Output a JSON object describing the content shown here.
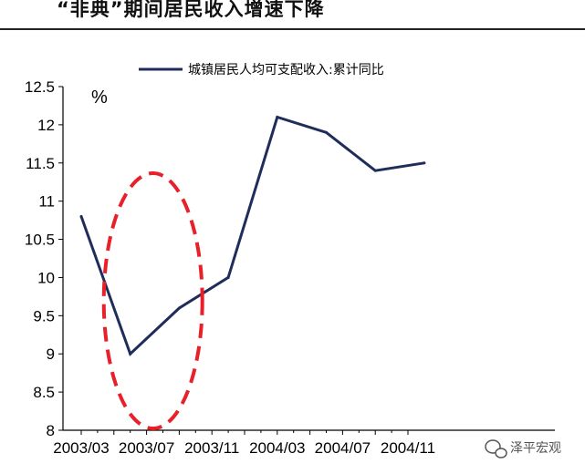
{
  "header": {
    "title": "“非典”期间居民收入增速下降"
  },
  "watermark": {
    "text": "泽平宏观",
    "icon": "wechat-icon",
    "color": "#555555"
  },
  "colors": {
    "series": "#1f2d5a",
    "highlight": "#e8202a",
    "axis": "#000000"
  },
  "chart_data": {
    "type": "line",
    "unit_label": "%",
    "xlabel": "",
    "ylabel": "",
    "x_ticks": [
      "2003/03",
      "2003/07",
      "2003/11",
      "2004/03",
      "2004/07",
      "2004/11"
    ],
    "ylim": [
      8,
      12.5
    ],
    "y_ticks": [
      "8",
      "8.5",
      "9",
      "9.5",
      "10",
      "10.5",
      "11",
      "11.5",
      "12",
      "12.5"
    ],
    "grid": false,
    "legend_position": "top-right",
    "series": [
      {
        "name": "城镇居民人均可支配收入:累计同比",
        "x": [
          "2003/03",
          "2003/06",
          "2003/09",
          "2003/12",
          "2004/03",
          "2004/06",
          "2004/09",
          "2004/12"
        ],
        "values": [
          10.8,
          9.0,
          9.6,
          10.0,
          12.1,
          11.9,
          11.4,
          11.5
        ]
      }
    ],
    "annotations": [
      {
        "type": "dashed-ellipse",
        "around": "2003/06"
      }
    ]
  }
}
